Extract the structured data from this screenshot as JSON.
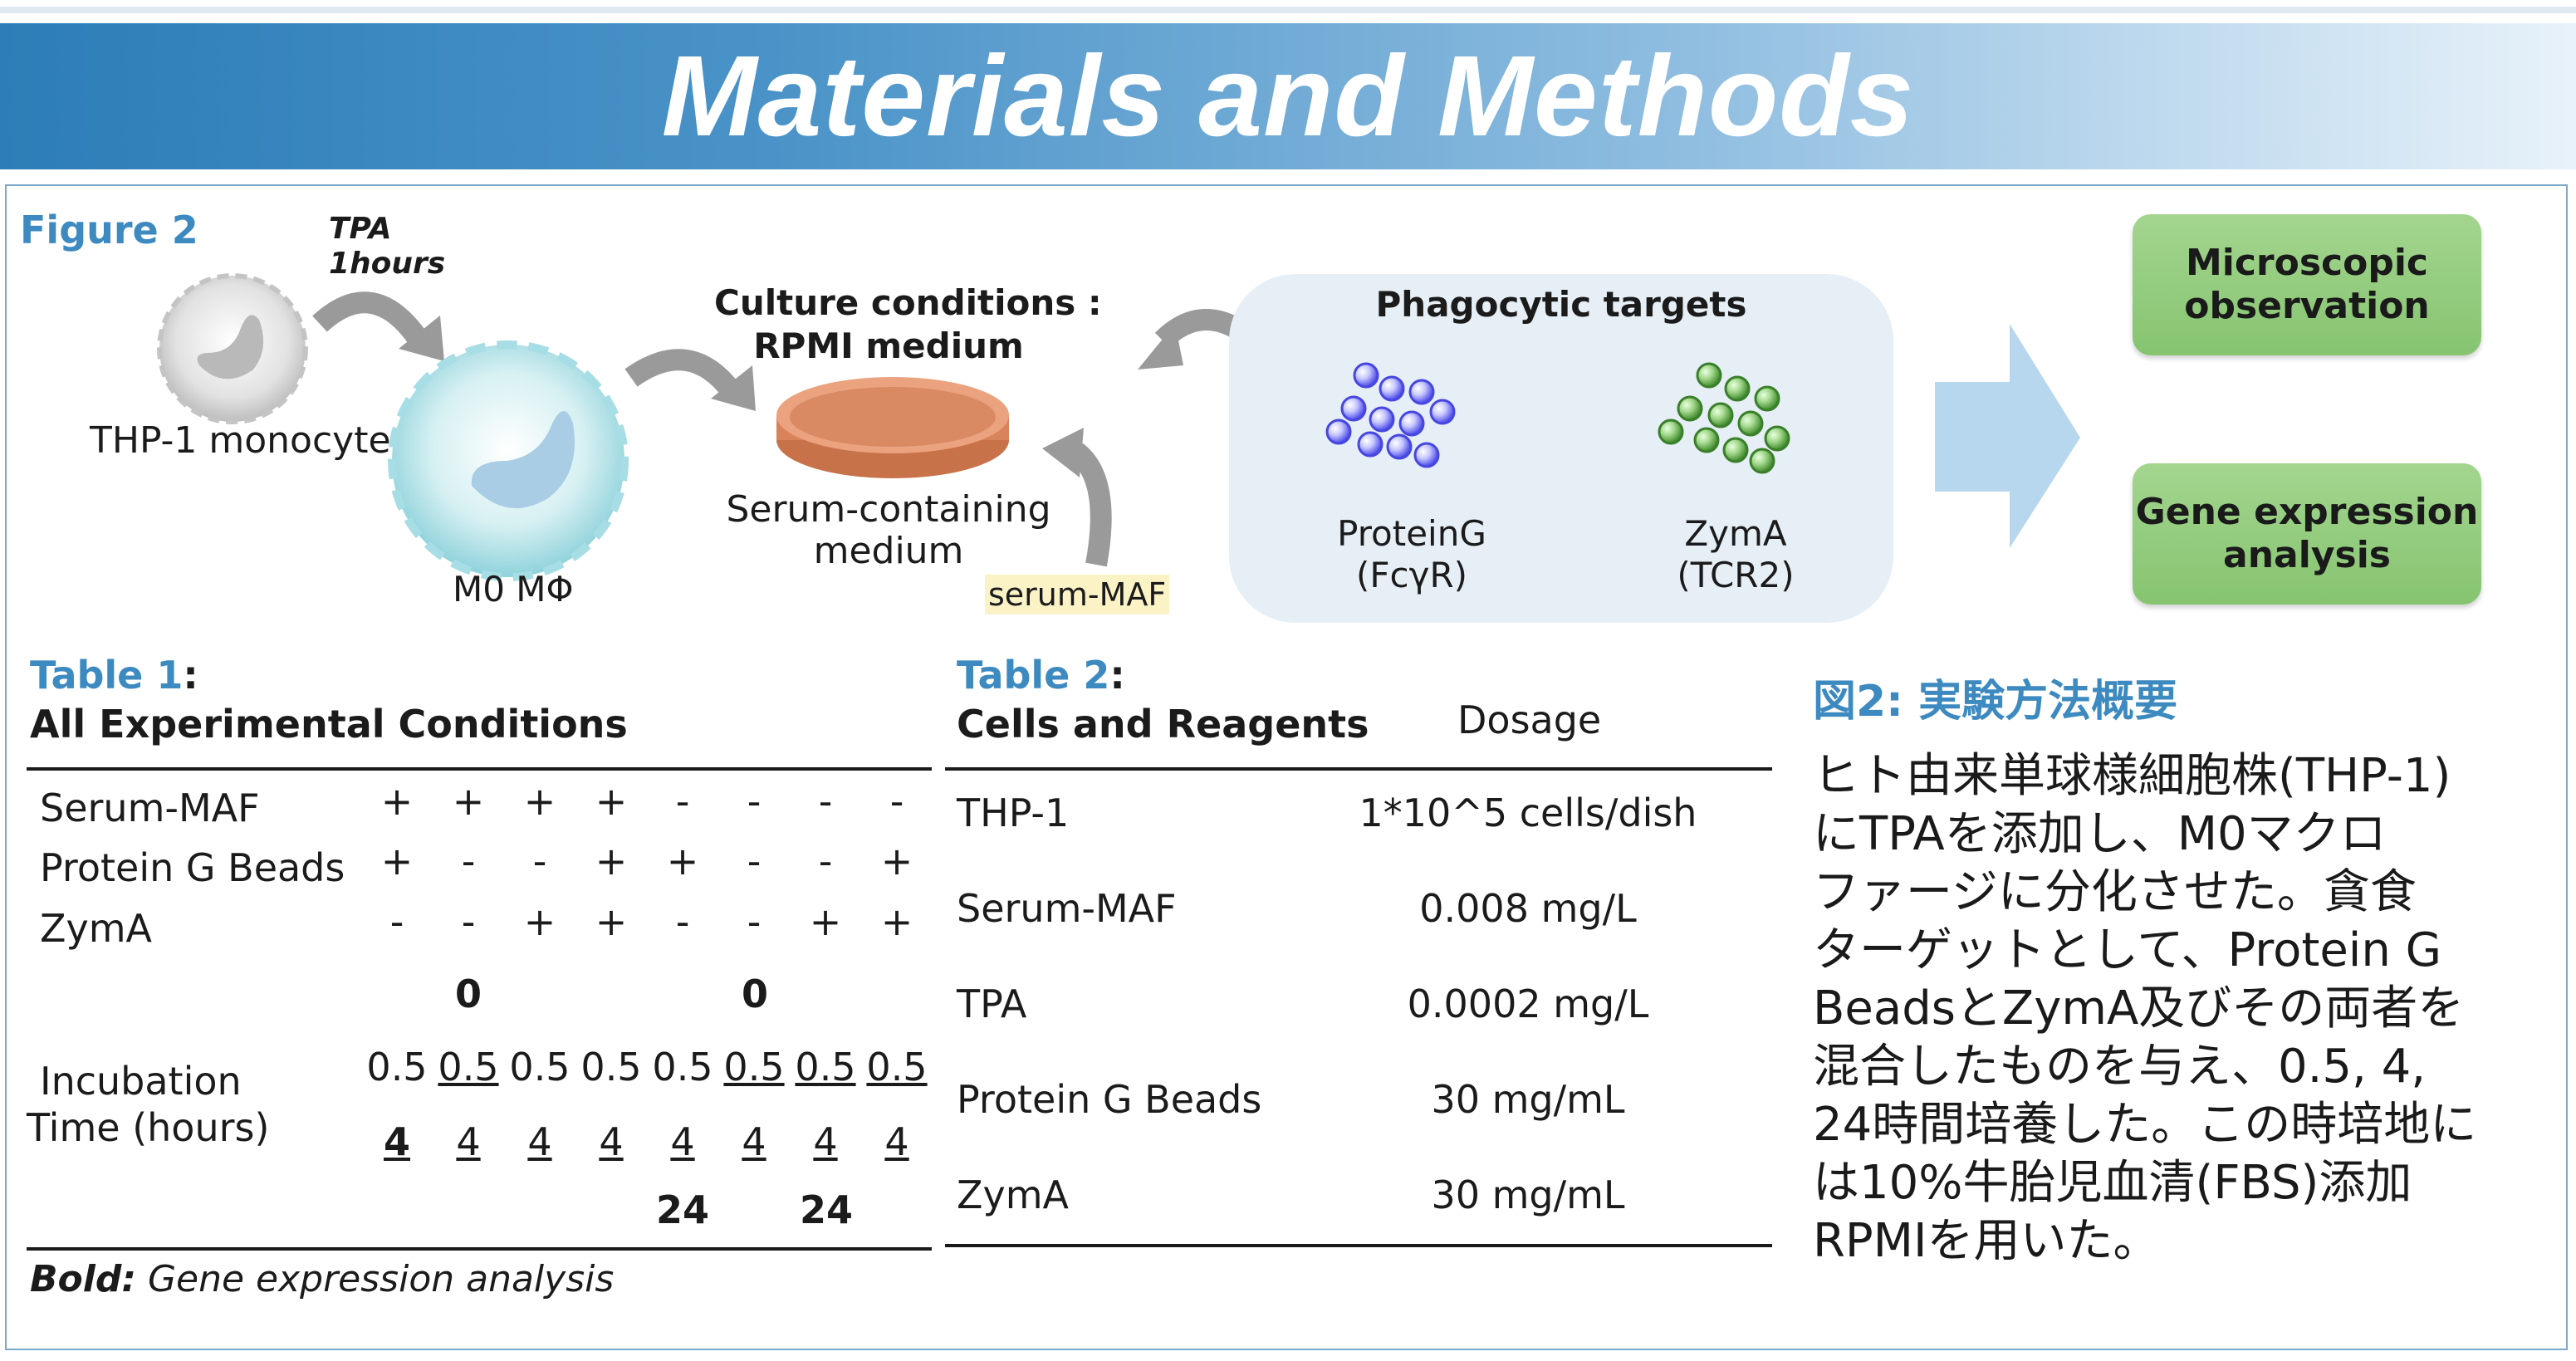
{
  "header": {
    "title": "Materials and Methods"
  },
  "figure": {
    "label": "Figure 2",
    "tpa_label": "TPA",
    "tpa_time": "1hours",
    "thp1_label": "THP-1 monocyte",
    "m0_label": "M0 MΦ",
    "culture_title_1": "Culture conditions :",
    "culture_title_2": "RPMI medium",
    "dish_label_1": "Serum-containing",
    "dish_label_2": "medium",
    "serum_maf_tag": "serum-MAF",
    "targets_title": "Phagocytic targets",
    "proteing_label_1": "ProteinG",
    "proteing_label_2": "(FcγR)",
    "zyma_label_1": "ZymA",
    "zyma_label_2": "(TCR2)",
    "box1_l1": "Microscopic",
    "box1_l2": "observation",
    "box2_l1": "Gene expression",
    "box2_l2": "analysis"
  },
  "colors": {
    "accent_blue": "#3d8ac0",
    "green_box": "#93cc7d",
    "protein_g_beads": "#5b5bf0",
    "zyma_beads": "#4d9a3a",
    "dish": "#e08a62"
  },
  "table1": {
    "label": "Table 1",
    "colon": ":",
    "title": "All Experimental Conditions",
    "rows": [
      {
        "name": "Serum-MAF",
        "marks": [
          "+",
          "+",
          "+",
          "+",
          "-",
          "-",
          "-",
          "-"
        ]
      },
      {
        "name": "Protein G Beads",
        "marks": [
          "+",
          "-",
          "-",
          "+",
          "+",
          "-",
          "-",
          "+"
        ]
      },
      {
        "name": "ZymA",
        "marks": [
          "-",
          "-",
          "+",
          "+",
          "-",
          "-",
          "+",
          "+"
        ]
      }
    ],
    "incubation_label_1": "Incubation",
    "incubation_label_2": "Time (hours)",
    "zero_a": "0",
    "zero_b": "0",
    "half_values": [
      "0.5",
      "0.5",
      "0.5",
      "0.5",
      "0.5",
      "0.5",
      "0.5",
      "0.5"
    ],
    "four_values": [
      "4",
      "4",
      "4",
      "4",
      "4",
      "4",
      "4",
      "4"
    ],
    "t24_a": "24",
    "t24_b": "24",
    "footnote_bold": "Bold:",
    "footnote_text": " Gene expression analysis"
  },
  "table2": {
    "label": "Table 2",
    "colon": ":",
    "title": "Cells and Reagents",
    "dosage_header": "Dosage",
    "rows": [
      {
        "name": "THP-1",
        "dose": "1*10^5 cells/dish"
      },
      {
        "name": "Serum-MAF",
        "dose": "0.008 mg/L"
      },
      {
        "name": "TPA",
        "dose": "0.0002 mg/L"
      },
      {
        "name": "Protein G Beads",
        "dose": "30 mg/mL"
      },
      {
        "name": "ZymA",
        "dose": "30 mg/mL"
      }
    ]
  },
  "summary": {
    "title": "図2: 実験方法概要",
    "lines": [
      "ヒト由来単球様細胞株(THP-1)",
      "にTPAを添加し、M0マクロ",
      "ファージに分化させた。貪食",
      "ターゲットとして、Protein G",
      "BeadsとZymA及びその両者を",
      "混合したものを与え、0.5, 4,",
      "24時間培養した。この時培地に",
      "は10%牛胎児血清(FBS)添加",
      "RPMIを用いた。"
    ]
  }
}
